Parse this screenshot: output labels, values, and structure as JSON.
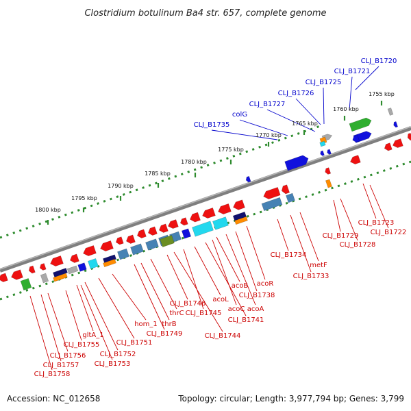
{
  "title": "Clostridium botulinum Ba4 str. 657, complete genome",
  "footer": {
    "accession": "Accession: NC_012658",
    "summary": "Topology: circular; Length: 3,977,794 bp; Genes: 3,799"
  },
  "colors": {
    "backbone": "#7f7f7f",
    "tick_dots": "#2e8b2e",
    "label_top": "#0000cc",
    "label_bottom": "#cc0000",
    "gene_red": "#ee1111",
    "gene_blue": "#1111dd",
    "gene_green": "#2fae2f",
    "gene_cyan": "#22d8ee",
    "gene_steel": "#4682b4",
    "gene_orange": "#ff8c00",
    "gene_navy": "#11116e",
    "gene_gray": "#a9a9a9",
    "gene_olive": "#6b8e23"
  },
  "scale_labels": [
    {
      "text": "1755 kbp",
      "kb": 1755
    },
    {
      "text": "1760 kbp",
      "kb": 1760
    },
    {
      "text": "1765 kbp",
      "kb": 1765
    },
    {
      "text": "1770 kbp",
      "kb": 1770
    },
    {
      "text": "1775 kbp",
      "kb": 1775
    },
    {
      "text": "1780 kbp",
      "kb": 1780
    },
    {
      "text": "1785 kbp",
      "kb": 1785
    },
    {
      "text": "1790 kbp",
      "kb": 1790
    },
    {
      "text": "1795 kbp",
      "kb": 1795
    },
    {
      "text": "1800 kbp",
      "kb": 1800
    }
  ],
  "labels_top": [
    {
      "text": "CLJ_B1720"
    },
    {
      "text": "CLJ_B1721"
    },
    {
      "text": "CLJ_B1725"
    },
    {
      "text": "CLJ_B1726"
    },
    {
      "text": "CLJ_B1727"
    },
    {
      "text": "colG"
    },
    {
      "text": "CLJ_B1735"
    }
  ],
  "labels_bottom": [
    {
      "text": "CLJ_B1722"
    },
    {
      "text": "CLJ_B1723"
    },
    {
      "text": "CLJ_B1728"
    },
    {
      "text": "CLJ_B1729"
    },
    {
      "text": "metF"
    },
    {
      "text": "CLJ_B1733"
    },
    {
      "text": "CLJ_B1734"
    },
    {
      "text": "acoR"
    },
    {
      "text": "CLJ_B1738"
    },
    {
      "text": "acoA"
    },
    {
      "text": "acoB"
    },
    {
      "text": "acoC"
    },
    {
      "text": "CLJ_B1741"
    },
    {
      "text": "acoL"
    },
    {
      "text": "CLJ_B1744"
    },
    {
      "text": "CLJ_B1745"
    },
    {
      "text": "CLJ_B1746"
    },
    {
      "text": "thrC"
    },
    {
      "text": "thrB"
    },
    {
      "text": "CLJ_B1749"
    },
    {
      "text": "hom_1"
    },
    {
      "text": "CLJ_B1751"
    },
    {
      "text": "CLJ_B1752"
    },
    {
      "text": "CLJ_B1753"
    },
    {
      "text": "gltA_1"
    },
    {
      "text": "CLJ_B1755"
    },
    {
      "text": "CLJ_B1756"
    },
    {
      "text": "CLJ_B1757"
    },
    {
      "text": "CLJ_B1758"
    }
  ]
}
